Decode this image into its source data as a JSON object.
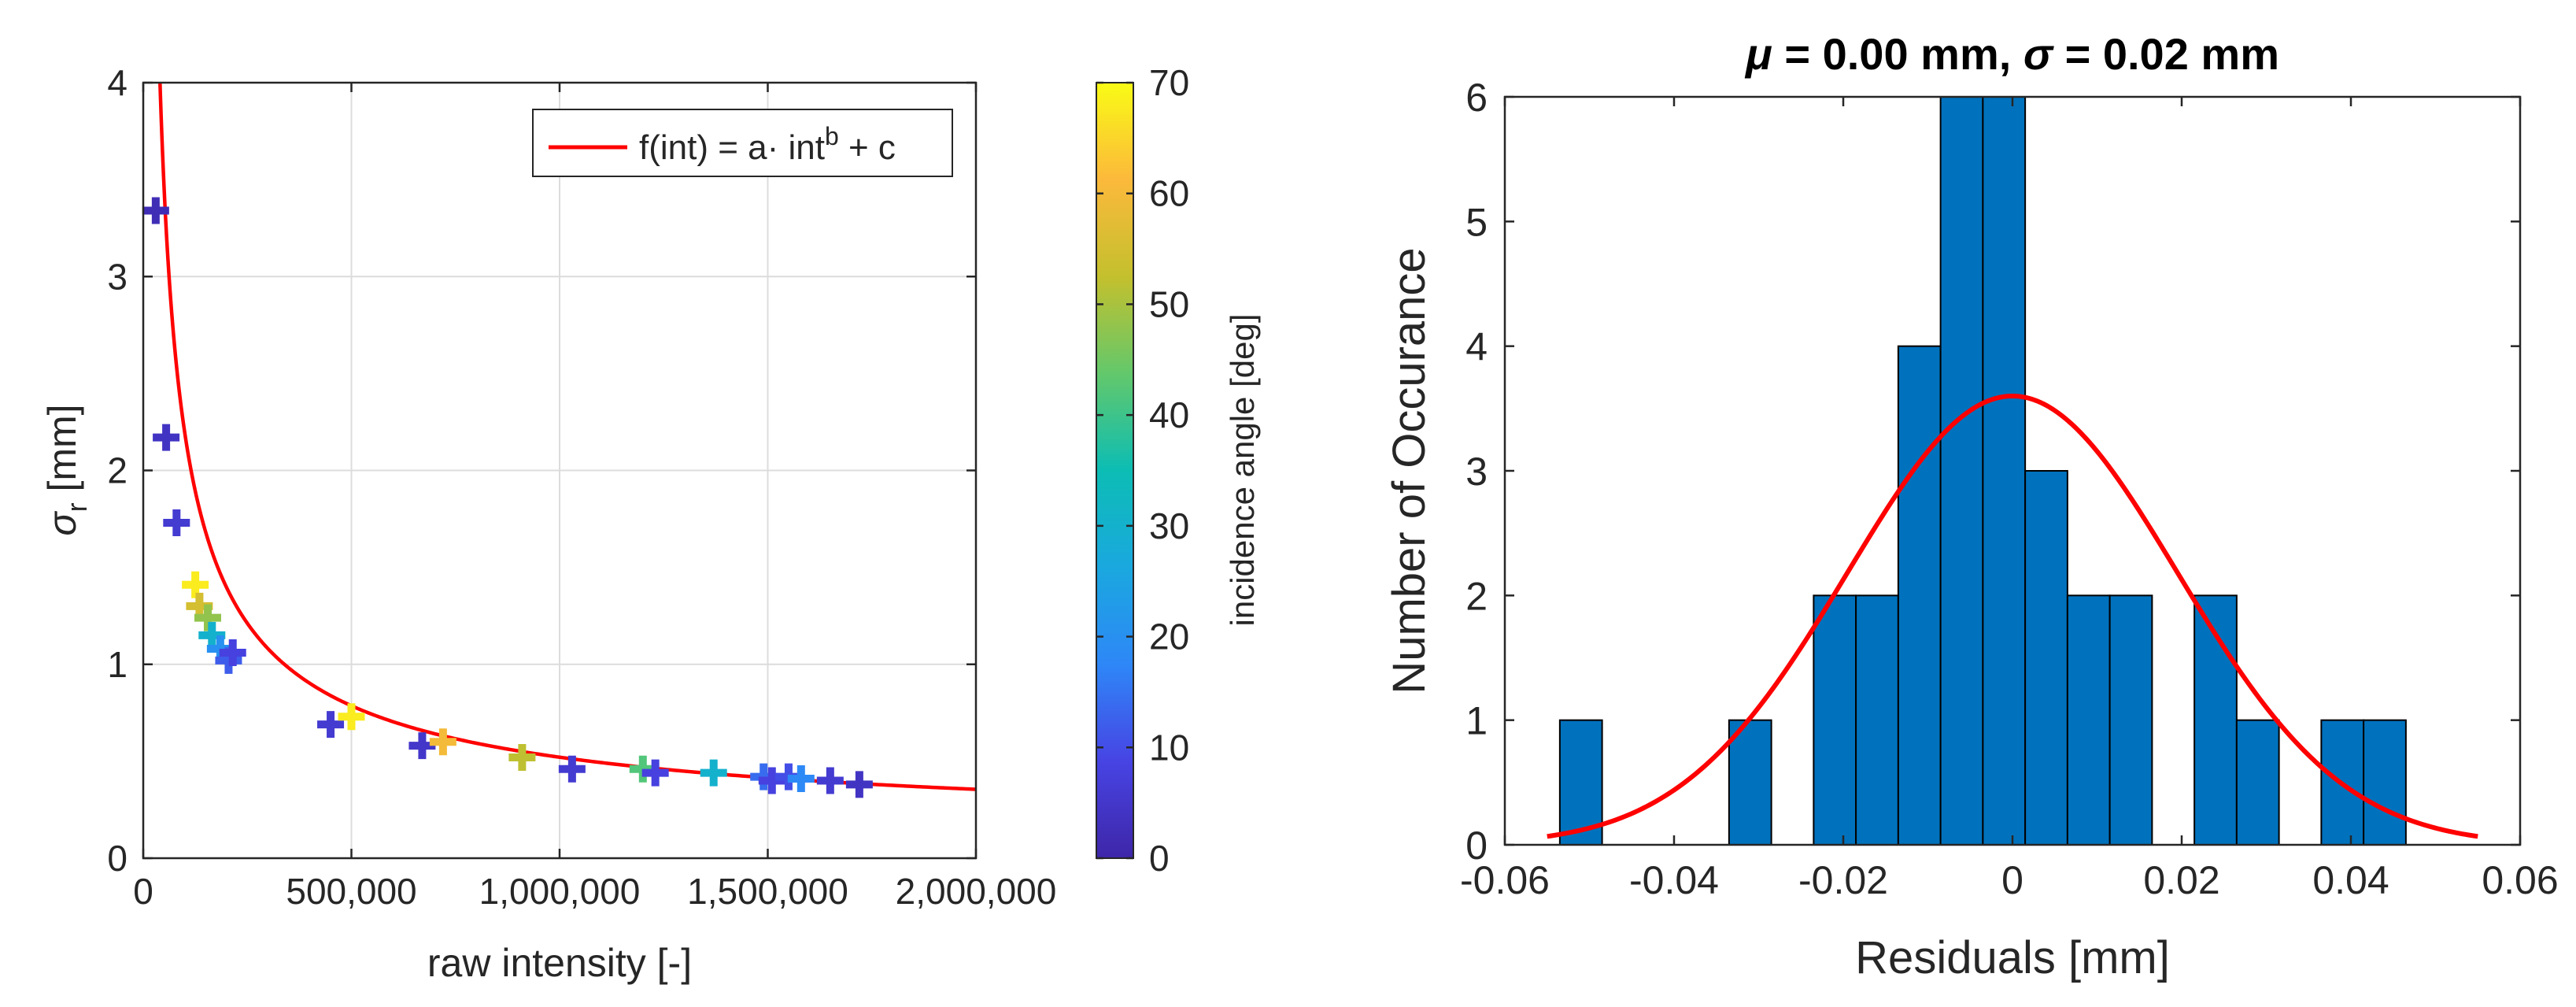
{
  "chart_data": [
    {
      "type": "scatter",
      "title": "",
      "xlabel": "raw intensity [-]",
      "ylabel": "σ_r [mm]",
      "ylabel_main": "σ",
      "ylabel_sub": "r",
      "ylabel_unit": " [mm]",
      "xlim": [
        0,
        2000000
      ],
      "ylim": [
        0,
        4
      ],
      "xticks": [
        0,
        500000,
        1000000,
        1500000,
        2000000
      ],
      "xtick_labels": [
        "0",
        "500,000",
        "1,000,000",
        "1,500,000",
        "2,000,000"
      ],
      "yticks": [
        0,
        1,
        2,
        3,
        4
      ],
      "ytick_labels": [
        "0",
        "1",
        "2",
        "3",
        "4"
      ],
      "grid": true,
      "legend": {
        "position": "top-right",
        "label_main": "f(int) = a· int",
        "label_sup": "b",
        "label_tail": " + c"
      },
      "fit": {
        "a": 5300,
        "b": -0.68,
        "c": 0.08,
        "color": "#ff0000"
      },
      "colorbar": {
        "label": "incidence angle [deg]",
        "range": [
          0,
          70
        ],
        "ticks": [
          0,
          10,
          20,
          30,
          40,
          50,
          60,
          70
        ],
        "tick_labels": [
          "0",
          "10",
          "20",
          "30",
          "40",
          "50",
          "60",
          "70"
        ]
      },
      "points": [
        {
          "x": 30000,
          "y": 3.34,
          "angle": 2
        },
        {
          "x": 55000,
          "y": 2.17,
          "angle": 4
        },
        {
          "x": 80000,
          "y": 1.73,
          "angle": 6
        },
        {
          "x": 125000,
          "y": 1.41,
          "angle": 68
        },
        {
          "x": 135000,
          "y": 1.3,
          "angle": 55
        },
        {
          "x": 155000,
          "y": 1.24,
          "angle": 48
        },
        {
          "x": 165000,
          "y": 1.15,
          "angle": 30
        },
        {
          "x": 185000,
          "y": 1.08,
          "angle": 20
        },
        {
          "x": 205000,
          "y": 1.02,
          "angle": 12
        },
        {
          "x": 215000,
          "y": 1.06,
          "angle": 8
        },
        {
          "x": 450000,
          "y": 0.69,
          "angle": 6
        },
        {
          "x": 500000,
          "y": 0.73,
          "angle": 68
        },
        {
          "x": 670000,
          "y": 0.58,
          "angle": 5
        },
        {
          "x": 720000,
          "y": 0.6,
          "angle": 60
        },
        {
          "x": 910000,
          "y": 0.52,
          "angle": 52
        },
        {
          "x": 1030000,
          "y": 0.46,
          "angle": 6
        },
        {
          "x": 1200000,
          "y": 0.46,
          "angle": 42
        },
        {
          "x": 1230000,
          "y": 0.44,
          "angle": 8
        },
        {
          "x": 1370000,
          "y": 0.44,
          "angle": 30
        },
        {
          "x": 1490000,
          "y": 0.42,
          "angle": 14
        },
        {
          "x": 1510000,
          "y": 0.4,
          "angle": 8
        },
        {
          "x": 1550000,
          "y": 0.42,
          "angle": 10
        },
        {
          "x": 1580000,
          "y": 0.41,
          "angle": 18
        },
        {
          "x": 1650000,
          "y": 0.4,
          "angle": 6
        },
        {
          "x": 1720000,
          "y": 0.38,
          "angle": 4
        }
      ]
    },
    {
      "type": "bar",
      "title": "μ = 0.00 mm, σ = 0.02 mm",
      "title_parts": {
        "mu": "μ",
        "mu_text": " = 0.00 mm, ",
        "sigma": "σ",
        "sigma_text": " = 0.02 mm"
      },
      "xlabel": "Residuals [mm]",
      "ylabel": "Number of Occurance",
      "xlim": [
        -0.06,
        0.06
      ],
      "ylim": [
        0,
        6
      ],
      "xticks": [
        -0.06,
        -0.04,
        -0.02,
        0,
        0.02,
        0.04,
        0.06
      ],
      "xtick_labels": [
        "-0.06",
        "-0.04",
        "-0.02",
        "0",
        "0.02",
        "0.04",
        "0.06"
      ],
      "yticks": [
        0,
        1,
        2,
        3,
        4,
        5,
        6
      ],
      "ytick_labels": [
        "0",
        "1",
        "2",
        "3",
        "4",
        "5",
        "6"
      ],
      "bin_width": 0.005,
      "bins": [
        {
          "start": -0.0535,
          "count": 1
        },
        {
          "start": -0.0335,
          "count": 1
        },
        {
          "start": -0.0235,
          "count": 2
        },
        {
          "start": -0.0185,
          "count": 2
        },
        {
          "start": -0.0135,
          "count": 4
        },
        {
          "start": -0.0085,
          "count": 6
        },
        {
          "start": -0.0035,
          "count": 6
        },
        {
          "start": 0.0015,
          "count": 3
        },
        {
          "start": 0.0065,
          "count": 2
        },
        {
          "start": 0.0115,
          "count": 2
        },
        {
          "start": 0.0215,
          "count": 2
        },
        {
          "start": 0.0265,
          "count": 1
        },
        {
          "start": 0.0365,
          "count": 1
        },
        {
          "start": 0.0415,
          "count": 1
        }
      ],
      "bar_color": "#0072bd",
      "normal_fit": {
        "mu": 0.0,
        "sigma": 0.0195,
        "peak": 3.6,
        "x_range": [
          -0.055,
          0.055
        ],
        "color": "#ff0000"
      }
    }
  ]
}
